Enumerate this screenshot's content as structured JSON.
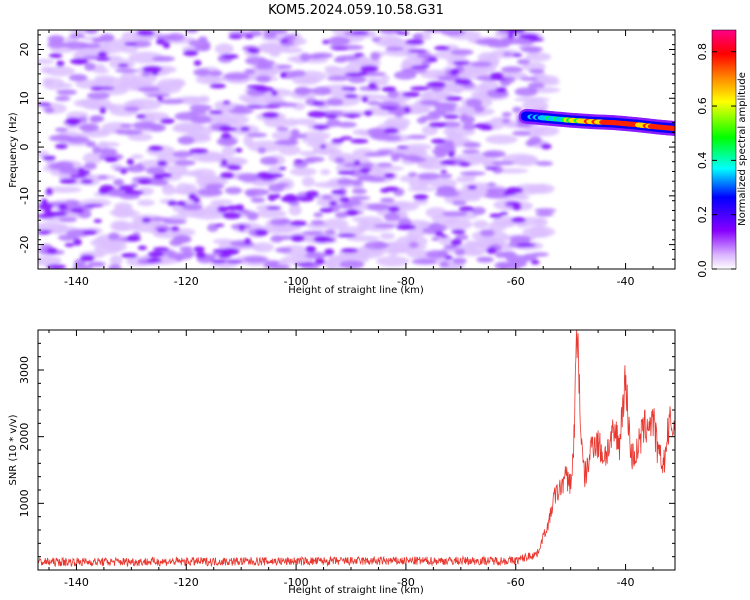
{
  "title": "KOM5.2024.059.10.58.G31",
  "chart_data": [
    {
      "type": "heatmap",
      "xlabel": "Height of straight line (km)",
      "ylabel": "Frequency (Hz)",
      "xlim": [
        -147,
        -31
      ],
      "ylim": [
        -25,
        24
      ],
      "xticks": [
        -140,
        -120,
        -100,
        -80,
        -60,
        -40
      ],
      "yticks": [
        -20,
        -10,
        0,
        10,
        20
      ],
      "colorbar": {
        "label": "Normalized spectral amplitude",
        "range": [
          0.0,
          0.88
        ],
        "ticks": [
          0.0,
          0.2,
          0.4,
          0.6,
          0.8
        ],
        "colormap": [
          "#ffffff",
          "#d9b3ff",
          "#8800ff",
          "#0000ff",
          "#00ffff",
          "#00ff00",
          "#ffff00",
          "#ff8800",
          "#ff0000",
          "#ff0088"
        ]
      },
      "noise_region": {
        "x": [
          -146,
          -54
        ],
        "y": [
          -25,
          24
        ],
        "amplitude": 0.15
      },
      "ridge": {
        "x": [
          -58,
          -54,
          -50,
          -46,
          -42,
          -38,
          -34,
          -31
        ],
        "y": [
          6.3,
          5.9,
          5.5,
          5.2,
          5.0,
          4.6,
          4.1,
          3.8
        ],
        "amplitude": [
          0.3,
          0.45,
          0.62,
          0.72,
          0.8,
          0.75,
          0.82,
          0.85
        ]
      },
      "grid": false
    },
    {
      "type": "line",
      "xlabel": "Height of straight line (km)",
      "ylabel": "SNR (10 * v/v)",
      "xlim": [
        -147,
        -31
      ],
      "ylim": [
        0,
        3600
      ],
      "xticks": [
        -140,
        -120,
        -100,
        -80,
        -60,
        -40
      ],
      "yticks": [
        1000,
        2000,
        3000
      ],
      "series": [
        {
          "color": "#e8372f",
          "x": [
            -147,
            -60,
            -56,
            -55,
            -54,
            -53,
            -52,
            -51,
            -50,
            -49.5,
            -49,
            -48.7,
            -48.3,
            -48,
            -47.5,
            -47,
            -46,
            -45,
            -44,
            -43,
            -42,
            -41,
            -40.5,
            -40,
            -39.5,
            -39,
            -38,
            -37,
            -36,
            -35,
            -34,
            -33,
            -32,
            -31
          ],
          "y": [
            120,
            140,
            250,
            500,
            700,
            1100,
            1200,
            1400,
            1300,
            1700,
            3200,
            3550,
            2500,
            1800,
            1400,
            1500,
            1950,
            1900,
            1700,
            1850,
            2050,
            1900,
            2600,
            2800,
            2300,
            1700,
            1750,
            2050,
            2200,
            2250,
            1700,
            1600,
            2200,
            2100
          ]
        }
      ],
      "grid": false
    }
  ]
}
